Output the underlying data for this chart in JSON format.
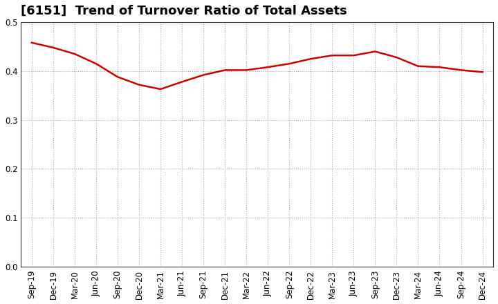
{
  "title": "[6151]  Trend of Turnover Ratio of Total Assets",
  "x_labels": [
    "Sep-19",
    "Dec-19",
    "Mar-20",
    "Jun-20",
    "Sep-20",
    "Dec-20",
    "Mar-21",
    "Jun-21",
    "Sep-21",
    "Dec-21",
    "Mar-22",
    "Jun-22",
    "Sep-22",
    "Dec-22",
    "Mar-23",
    "Jun-23",
    "Sep-23",
    "Dec-23",
    "Mar-24",
    "Jun-24",
    "Sep-24",
    "Dec-24"
  ],
  "values": [
    0.458,
    0.448,
    0.435,
    0.415,
    0.388,
    0.372,
    0.363,
    0.378,
    0.392,
    0.402,
    0.402,
    0.408,
    0.415,
    0.425,
    0.432,
    0.432,
    0.44,
    0.428,
    0.41,
    0.408,
    0.402,
    0.398
  ],
  "line_color": "#cc0000",
  "line_width": 1.8,
  "ylim": [
    0.0,
    0.5
  ],
  "yticks": [
    0.0,
    0.1,
    0.2,
    0.3,
    0.4,
    0.5
  ],
  "grid_color": "#aaaaaa",
  "grid_linestyle": ":",
  "background_color": "#ffffff",
  "title_fontsize": 13,
  "tick_fontsize": 8.5
}
